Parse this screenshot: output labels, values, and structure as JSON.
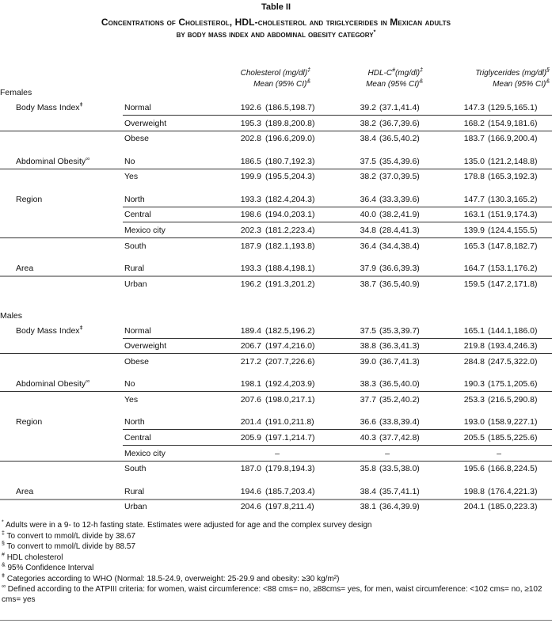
{
  "title": {
    "label": "Table II",
    "line1": "Concentrations of Cholesterol, HDL-cholesterol and triglycerides in Mexican adults",
    "line2": "by body mass index and abdominal obesity category",
    "line2_mark": "*"
  },
  "columns": [
    {
      "name": "Cholesterol (mg/dl)",
      "mark": "‡",
      "sub": "Mean (95% CI)",
      "sub_mark": "&"
    },
    {
      "name": "HDL-C",
      "name_mark": "#",
      "name_rest": "(mg/dl)",
      "mark": "‡",
      "sub": "Mean (95% CI)",
      "sub_mark": "&"
    },
    {
      "name": "Triglycerides (mg/dl)",
      "mark": "§",
      "sub": "Mean (95% CI)",
      "sub_mark": "&"
    }
  ],
  "sections": [
    {
      "label": "Females",
      "groups": [
        {
          "label": "Body Mass Index",
          "mark": "ǂ",
          "rows": [
            {
              "cat": "Normal",
              "v": [
                "192.6",
                "(186.5,198.7)",
                "39.2",
                "(37.1,41.4)",
                "147.3",
                "(129.5,165.1)"
              ]
            },
            {
              "cat": "Overweight",
              "v": [
                "195.3",
                "(189.8,200.8)",
                "38.2",
                "(36.7,39.6)",
                "168.2",
                "(154.9,181.6)"
              ]
            },
            {
              "cat": "Obese",
              "v": [
                "202.8",
                "(196.6,209.0)",
                "38.4",
                "(36.5,40.2)",
                "183.7",
                "(166.9,200.4)"
              ]
            }
          ]
        },
        {
          "label": "Abdominal Obesity",
          "mark": "∞",
          "rows": [
            {
              "cat": "No",
              "v": [
                "186.5",
                "(180.7,192.3)",
                "37.5",
                "(35.4,39.6)",
                "135.0",
                "(121.2,148.8)"
              ]
            },
            {
              "cat": "Yes",
              "v": [
                "199.9",
                "(195.5,204.3)",
                "38.2",
                "(37.0,39.5)",
                "178.8",
                "(165.3,192.3)"
              ]
            }
          ]
        },
        {
          "label": "Region",
          "mark": "",
          "rows": [
            {
              "cat": "North",
              "v": [
                "193.3",
                "(182.4,204.3)",
                "36.4",
                "(33.3,39.6)",
                "147.7",
                "(130.3,165.2)"
              ]
            },
            {
              "cat": "Central",
              "v": [
                "198.6",
                "(194.0,203.1)",
                "40.0",
                "(38.2,41.9)",
                "163.1",
                "(151.9,174.3)"
              ]
            },
            {
              "cat": "Mexico city",
              "v": [
                "202.3",
                "(181.2,223.4)",
                "34.8",
                "(28.4,41.3)",
                "139.9",
                "(124.4,155.5)"
              ]
            },
            {
              "cat": "South",
              "v": [
                "187.9",
                "(182.1,193.8)",
                "36.4",
                "(34.4,38.4)",
                "165.3",
                "(147.8,182.7)"
              ]
            }
          ]
        },
        {
          "label": "Area",
          "mark": "",
          "rows": [
            {
              "cat": "Rural",
              "v": [
                "193.3",
                "(188.4,198.1)",
                "37.9",
                "(36.6,39.3)",
                "164.7",
                "(153.1,176.2)"
              ]
            },
            {
              "cat": "Urban",
              "v": [
                "196.2",
                "(191.3,201.2)",
                "38.7",
                "(36.5,40.9)",
                "159.5",
                "(147.2,171.8)"
              ]
            }
          ]
        }
      ]
    },
    {
      "label": "Males",
      "groups": [
        {
          "label": "Body Mass Index",
          "mark": "ǂ",
          "rows": [
            {
              "cat": "Normal",
              "v": [
                "189.4",
                "(182.5,196.2)",
                "37.5",
                "(35.3,39.7)",
                "165.1",
                "(144.1,186.0)"
              ]
            },
            {
              "cat": "Overweight",
              "v": [
                "206.7",
                "(197.4,216.0)",
                "38.8",
                "(36.3,41.3)",
                "219.8",
                "(193.4,246.3)"
              ]
            },
            {
              "cat": "Obese",
              "v": [
                "217.2",
                "(207.7,226.6)",
                "39.0",
                "(36.7,41.3)",
                "284.8",
                "(247.5,322.0)"
              ]
            }
          ]
        },
        {
          "label": "Abdominal Obesity",
          "mark": "∞",
          "rows": [
            {
              "cat": "No",
              "v": [
                "198.1",
                "(192.4,203.9)",
                "38.3",
                "(36.5,40.0)",
                "190.3",
                "(175.1,205.6)"
              ]
            },
            {
              "cat": "Yes",
              "v": [
                "207.6",
                "(198.0,217.1)",
                "37.7",
                "(35.2,40.2)",
                "253.3",
                "(216.5,290.8)"
              ]
            }
          ]
        },
        {
          "label": "Region",
          "mark": "",
          "rows": [
            {
              "cat": "North",
              "v": [
                "201.4",
                "(191.0,211.8)",
                "36.6",
                "(33.8,39.4)",
                "193.0",
                "(158.9,227.1)"
              ]
            },
            {
              "cat": "Central",
              "v": [
                "205.9",
                "(197.1,214.7)",
                "40.3",
                "(37.7,42.8)",
                "205.5",
                "(185.5,225.6)"
              ]
            },
            {
              "cat": "Mexico city",
              "v": [
                "–",
                "",
                "–",
                "",
                "–",
                ""
              ]
            },
            {
              "cat": "South",
              "v": [
                "187.0",
                "(179.8,194.3)",
                "35.8",
                "(33.5,38.0)",
                "195.6",
                "(166.8,224.5)"
              ]
            }
          ]
        },
        {
          "label": "Area",
          "mark": "",
          "rows": [
            {
              "cat": "Rural",
              "v": [
                "194.6",
                "(185.7,203.4)",
                "38.4",
                "(35.7,41.1)",
                "198.8",
                "(176.4,221.3)"
              ]
            },
            {
              "cat": "Urban",
              "v": [
                "204.6",
                "(197.8,211.4)",
                "38.1",
                "(36.4,39.9)",
                "204.1",
                "(185.0,223.3)"
              ]
            }
          ]
        }
      ]
    }
  ],
  "footnotes": [
    {
      "mark": "*",
      "text": "Adults were in a 9- to 12-h fasting state. Estimates were adjusted for age and the complex survey design"
    },
    {
      "mark": "‡",
      "text": "To convert to mmol/L divide by 38.67"
    },
    {
      "mark": "§",
      "text": "To convert to mmol/L divide by 88.57"
    },
    {
      "mark": "#",
      "text": "HDL cholesterol"
    },
    {
      "mark": "&",
      "text": "95% Confidence Interval"
    },
    {
      "mark": "ǂ",
      "text": "Categories according to WHO (Normal: 18.5-24.9, overweight: 25-29.9 and obesity: ≥30 kg/m²)"
    },
    {
      "mark": "∞",
      "text": "Defined according to the ATPIII criteria: for women, waist circumference: <88 cms= no, ≥88cms= yes, for men, waist circumference: <102 cms= no, ≥102 cms= yes"
    }
  ]
}
